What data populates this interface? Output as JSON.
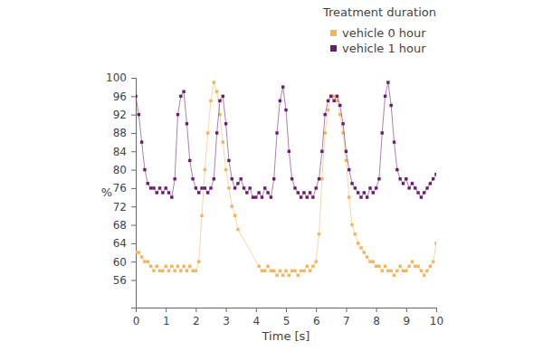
{
  "chart_data": {
    "type": "line",
    "x_label": "Time [s]",
    "y_label": "%",
    "legend_title": "Treatment duration",
    "legend": "top-right",
    "grid": false,
    "marker": "square",
    "line_style": "solid",
    "xlim": [
      0,
      10
    ],
    "xticks": [
      0,
      1,
      2,
      3,
      4,
      5,
      6,
      7,
      8,
      9,
      10
    ],
    "ylim": [
      50,
      100
    ],
    "yticks": [
      56,
      60,
      64,
      68,
      72,
      76,
      80,
      84,
      88,
      92,
      96,
      100
    ],
    "series": [
      {
        "name": "vehicle 0 hour",
        "color": "#f2b45c",
        "x": [
          0,
          0.1,
          0.2,
          0.3,
          0.4,
          0.5,
          0.6,
          0.7,
          0.8,
          0.9,
          1,
          1.1,
          1.2,
          1.3,
          1.4,
          1.5,
          1.6,
          1.7,
          1.8,
          1.9,
          2,
          2.1,
          2.2,
          2.3,
          2.4,
          2.5,
          2.6,
          2.7,
          2.8,
          2.9,
          3,
          3.1,
          3.2,
          3.3,
          3.4,
          4.1,
          4.2,
          4.3,
          4.4,
          4.5,
          4.6,
          4.7,
          4.8,
          4.9,
          5,
          5.1,
          5.2,
          5.3,
          5.4,
          5.5,
          5.6,
          5.7,
          5.8,
          5.9,
          6,
          6.1,
          6.2,
          6.3,
          6.4,
          6.5,
          6.6,
          6.7,
          6.8,
          6.9,
          7,
          7.1,
          7.2,
          7.3,
          7.4,
          7.5,
          7.6,
          7.7,
          7.8,
          7.9,
          8,
          8.1,
          8.2,
          8.3,
          8.4,
          8.5,
          8.6,
          8.7,
          8.8,
          8.9,
          9,
          9.1,
          9.2,
          9.3,
          9.4,
          9.5,
          9.6,
          9.7,
          9.8,
          9.9,
          10
        ],
        "values": [
          62,
          62,
          61,
          60,
          60,
          59,
          58,
          59,
          58,
          58,
          59,
          58,
          59,
          58,
          59,
          58,
          59,
          58,
          59,
          58,
          58,
          60,
          70,
          80,
          88,
          95,
          99,
          97,
          92,
          86,
          80,
          76,
          72,
          70,
          67,
          59,
          58,
          58,
          59,
          58,
          58,
          57,
          58,
          57,
          58,
          57,
          58,
          58,
          57,
          58,
          58,
          59,
          58,
          59,
          60,
          66,
          78,
          88,
          93,
          96,
          96,
          95,
          92,
          88,
          82,
          74,
          68,
          66,
          64,
          63,
          62,
          61,
          60,
          60,
          59,
          59,
          58,
          59,
          58,
          58,
          57,
          58,
          59,
          58,
          58,
          59,
          60,
          59,
          59,
          58,
          57,
          58,
          59,
          60,
          64
        ]
      },
      {
        "name": "vehicle 1 hour",
        "color": "#6a1b6e",
        "x": [
          0,
          0.1,
          0.2,
          0.3,
          0.4,
          0.5,
          0.6,
          0.7,
          0.8,
          0.9,
          1,
          1.1,
          1.2,
          1.3,
          1.4,
          1.5,
          1.6,
          1.7,
          1.8,
          1.9,
          2,
          2.1,
          2.2,
          2.3,
          2.4,
          2.5,
          2.6,
          2.7,
          2.8,
          2.9,
          3,
          3.1,
          3.2,
          3.3,
          3.4,
          3.5,
          3.6,
          3.7,
          3.8,
          3.9,
          4,
          4.1,
          4.2,
          4.3,
          4.4,
          4.5,
          4.6,
          4.7,
          4.8,
          4.9,
          5,
          5.1,
          5.2,
          5.3,
          5.4,
          5.5,
          5.6,
          5.7,
          5.8,
          5.9,
          6,
          6.1,
          6.2,
          6.3,
          6.4,
          6.5,
          6.6,
          6.7,
          6.8,
          6.9,
          7,
          7.1,
          7.2,
          7.3,
          7.4,
          7.5,
          7.6,
          7.7,
          7.8,
          7.9,
          8,
          8.1,
          8.2,
          8.3,
          8.4,
          8.5,
          8.6,
          8.7,
          8.8,
          8.9,
          9,
          9.1,
          9.2,
          9.3,
          9.4,
          9.5,
          9.6,
          9.7,
          9.8,
          9.9,
          10
        ],
        "values": [
          96,
          92,
          86,
          80,
          77,
          76,
          76,
          75,
          76,
          75,
          76,
          75,
          74,
          78,
          92,
          96,
          97,
          90,
          82,
          78,
          76,
          75,
          76,
          76,
          75,
          76,
          78,
          88,
          95,
          96,
          90,
          82,
          78,
          76,
          77,
          78,
          76,
          75,
          76,
          74,
          74,
          75,
          74,
          76,
          75,
          74,
          78,
          88,
          95,
          98,
          93,
          84,
          78,
          76,
          75,
          74,
          75,
          74,
          75,
          74,
          76,
          78,
          84,
          92,
          95,
          96,
          95,
          96,
          94,
          90,
          84,
          80,
          77,
          76,
          75,
          74,
          75,
          74,
          76,
          75,
          76,
          78,
          88,
          96,
          99,
          94,
          86,
          80,
          78,
          77,
          78,
          76,
          77,
          76,
          75,
          74,
          75,
          76,
          77,
          78,
          79
        ]
      }
    ]
  }
}
